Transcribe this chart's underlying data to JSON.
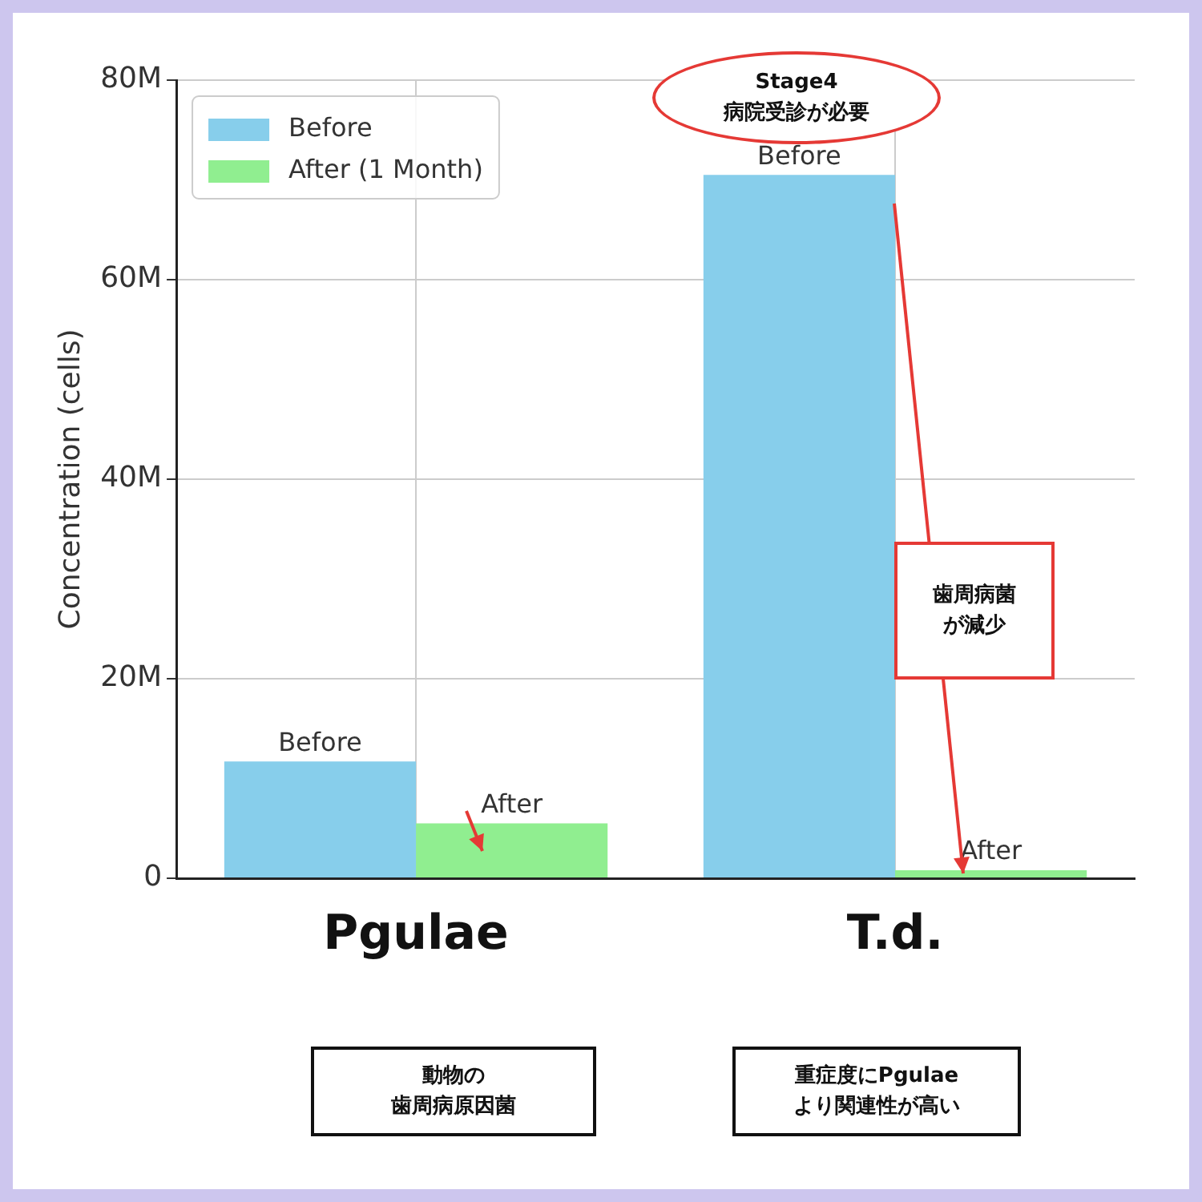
{
  "chart_data": {
    "type": "bar",
    "ylabel": "Concentration (cells)",
    "categories": [
      "Pgulae",
      "T.d."
    ],
    "series": [
      {
        "name": "Before",
        "color": "#87ceeb",
        "values": [
          11700000,
          70500000
        ],
        "value_labels": [
          "Before",
          "Before"
        ]
      },
      {
        "name": "After (1 Month)",
        "color": "#90ee90",
        "values": [
          5500000,
          800000
        ],
        "value_labels": [
          "After",
          "After"
        ]
      }
    ],
    "ylim": [
      0,
      80000000
    ],
    "yticks": [
      {
        "value": 0,
        "label": "0"
      },
      {
        "value": 20000000,
        "label": "20M"
      },
      {
        "value": 40000000,
        "label": "40M"
      },
      {
        "value": 60000000,
        "label": "60M"
      },
      {
        "value": 80000000,
        "label": "80M"
      }
    ],
    "grid": true,
    "legend": "top left",
    "annotations": [
      "Stage4\n病院受診が必要",
      "歯周病菌が減少",
      "動物の歯周病原因菌",
      "重症度にPgulaeより関連性が高い"
    ]
  }
}
